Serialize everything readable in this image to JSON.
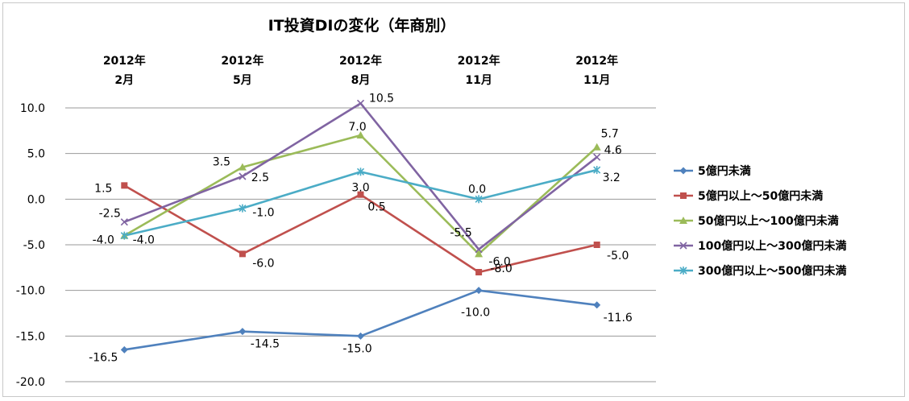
{
  "chart_data": {
    "type": "line",
    "title": "IT投資DIの変化（年商別）",
    "categories": [
      [
        "2012年",
        "2月"
      ],
      [
        "2012年",
        "5月"
      ],
      [
        "2012年",
        "8月"
      ],
      [
        "2012年",
        "11月"
      ],
      [
        "2012年",
        "11月"
      ]
    ],
    "ylim": [
      -20,
      10
    ],
    "ytick_labels": [
      "10.0",
      "5.0",
      "0.0",
      "-5.0",
      "-10.0",
      "-15.0",
      "-20.0"
    ],
    "ytick_values": [
      10,
      5,
      0,
      -5,
      -10,
      -15,
      -20
    ],
    "grid": true,
    "legend_position": "right",
    "series": [
      {
        "name": "5億円未満",
        "color": "#4f81bd",
        "marker": "diamond",
        "values": [
          -16.5,
          -14.5,
          -15.0,
          -10.0,
          -11.6
        ],
        "labels": [
          "-16.5",
          "-14.5",
          "-15.0",
          "-10.0",
          "-11.6"
        ]
      },
      {
        "name": "5億円以上～50億円未満",
        "color": "#c0504d",
        "marker": "square",
        "values": [
          1.5,
          -6.0,
          0.5,
          -8.0,
          -5.0
        ],
        "labels": [
          "1.5",
          "-6.0",
          "0.5",
          "-8.0",
          "-5.0"
        ]
      },
      {
        "name": "50億円以上～100億円未満",
        "color": "#9bbb59",
        "marker": "triangle",
        "values": [
          -4.0,
          3.5,
          7.0,
          -6.0,
          5.7
        ],
        "labels": [
          "-4.0",
          "3.5",
          "7.0",
          "-6.0",
          "5.7"
        ]
      },
      {
        "name": "100億円以上～300億円未満",
        "color": "#8064a2",
        "marker": "x",
        "values": [
          -2.5,
          2.5,
          10.5,
          -5.5,
          4.6
        ],
        "labels": [
          "-2.5",
          "2.5",
          "10.5",
          "-5.5",
          "4.6"
        ]
      },
      {
        "name": "300億円以上～500億円未満",
        "color": "#4bacc6",
        "marker": "star",
        "values": [
          -4.0,
          -1.0,
          3.0,
          0.0,
          3.2
        ],
        "labels": [
          "-4.0",
          "-1.0",
          "3.0",
          "0.0",
          "3.2"
        ]
      }
    ]
  }
}
